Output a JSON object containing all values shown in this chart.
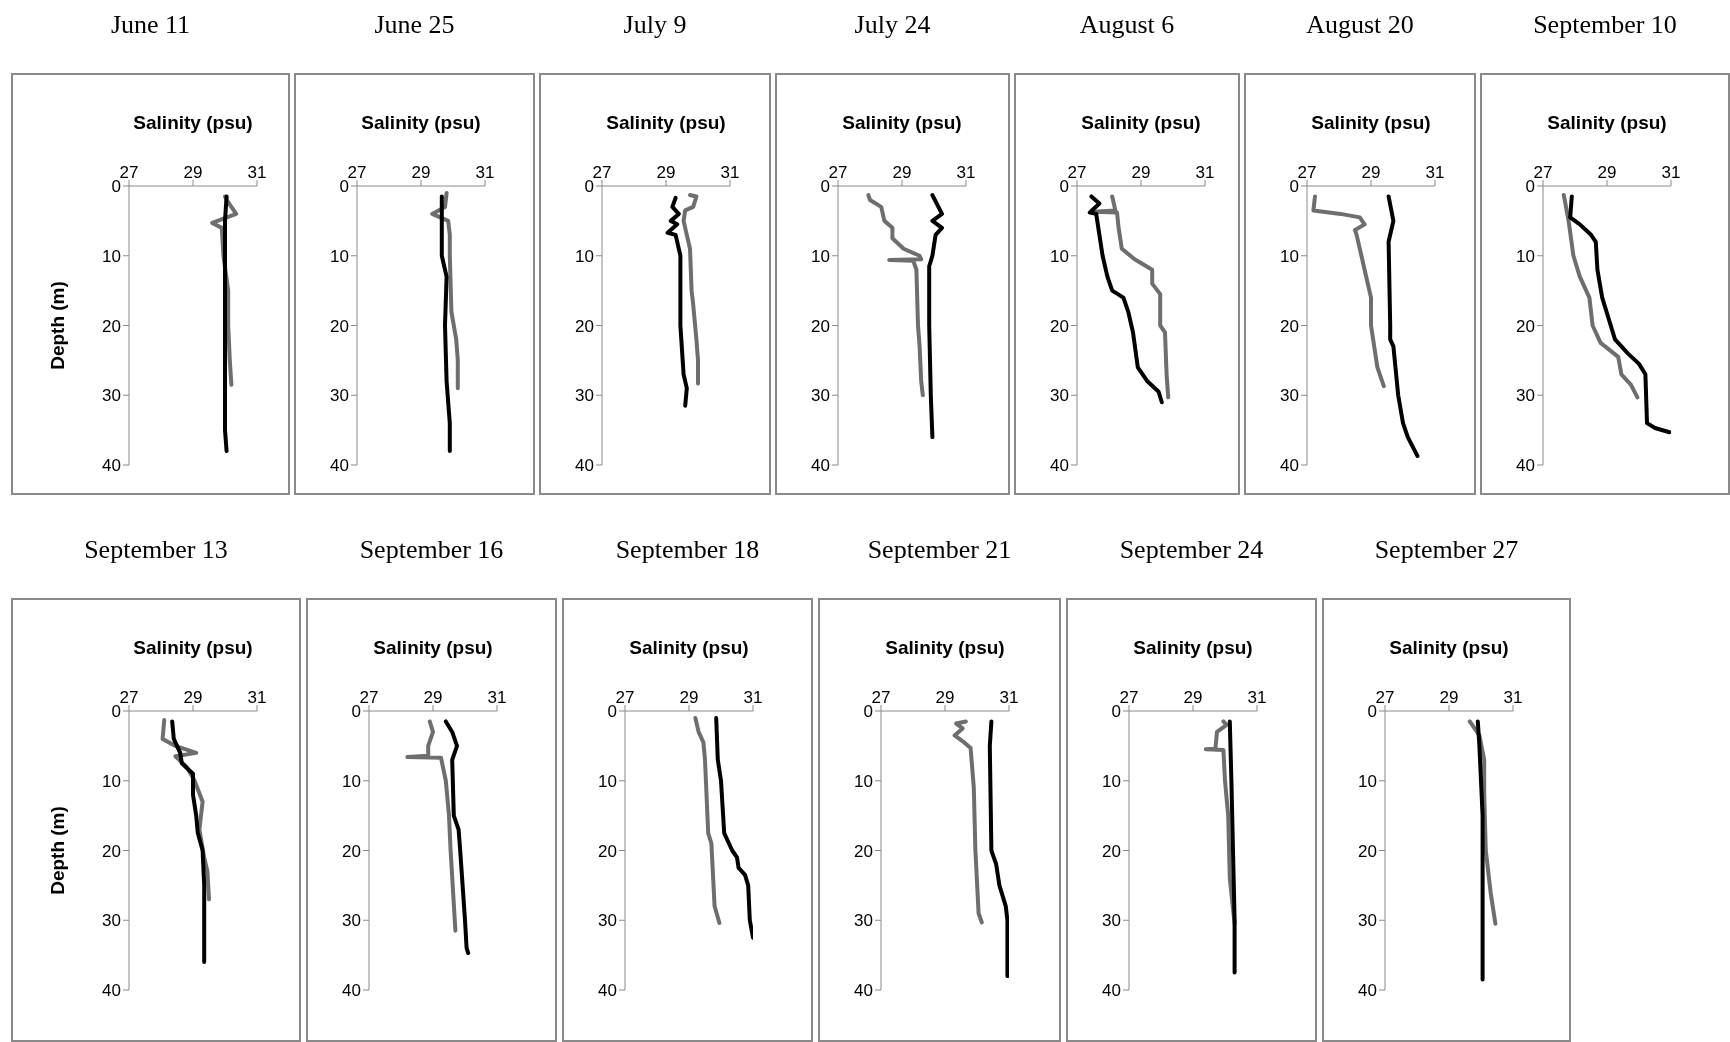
{
  "chart_data": [
    {
      "type": "line",
      "title": "June 11",
      "xlabel": "Salinity (psu)",
      "ylabel": "Depth (m)",
      "xlim": [
        27,
        31
      ],
      "xticks": [
        27,
        29,
        31
      ],
      "ylim": [
        40,
        0
      ],
      "yticks": [
        0,
        10,
        20,
        30,
        40
      ],
      "series": [
        {
          "color": "#6e6e6e",
          "x": [
            30.0,
            30.05,
            30.35,
            29.6,
            29.9,
            29.95,
            30.1,
            30.1,
            30.15,
            30.2
          ],
          "values": [
            1.5,
            2,
            4,
            5.3,
            6,
            10,
            15,
            20,
            25,
            28.5
          ]
        },
        {
          "color": "#000000",
          "x": [
            30.05,
            30.0,
            30.0,
            30.0,
            30.0,
            30.0,
            30.05
          ],
          "values": [
            1.5,
            5,
            10,
            20,
            30,
            35,
            38
          ]
        }
      ]
    },
    {
      "type": "line",
      "title": "June 25",
      "xlabel": "Salinity (psu)",
      "xlim": [
        27,
        31
      ],
      "xticks": [
        27,
        29,
        31
      ],
      "ylim": [
        40,
        0
      ],
      "yticks": [
        0,
        10,
        20,
        30,
        40
      ],
      "series": [
        {
          "color": "#6e6e6e",
          "x": [
            29.8,
            29.75,
            29.35,
            29.85,
            29.9,
            29.9,
            29.95,
            30.1,
            30.15,
            30.15
          ],
          "values": [
            1,
            3,
            4,
            5,
            7,
            10,
            18,
            22,
            25,
            29
          ]
        },
        {
          "color": "#000000",
          "x": [
            29.65,
            29.65,
            29.65,
            29.7,
            29.8,
            29.75,
            29.8,
            29.9,
            29.9
          ],
          "values": [
            1.5,
            5,
            10,
            11,
            13,
            20,
            28,
            34,
            38
          ]
        }
      ]
    },
    {
      "type": "line",
      "title": "July 9",
      "xlabel": "Salinity (psu)",
      "xlim": [
        27,
        31
      ],
      "xticks": [
        27,
        29,
        31
      ],
      "ylim": [
        40,
        0
      ],
      "yticks": [
        0,
        10,
        20,
        30,
        40
      ],
      "series": [
        {
          "color": "#6e6e6e",
          "x": [
            29.75,
            29.95,
            29.85,
            29.6,
            29.55,
            29.65,
            29.75,
            29.8,
            29.85,
            29.95,
            30.0,
            30.0
          ],
          "values": [
            1.3,
            1.5,
            3,
            3.5,
            5,
            7,
            9,
            15,
            17,
            22,
            25,
            28.3
          ]
        },
        {
          "color": "#000000",
          "x": [
            29.3,
            29.2,
            29.4,
            29.15,
            29.35,
            29.05,
            29.3,
            29.45,
            29.45,
            29.55,
            29.65,
            29.6
          ],
          "values": [
            1.7,
            3,
            4,
            5,
            5.5,
            6.7,
            7,
            10,
            20,
            27,
            29,
            31.5
          ]
        }
      ]
    },
    {
      "type": "line",
      "title": "July 24",
      "xlabel": "Salinity (psu)",
      "xlim": [
        27,
        31
      ],
      "xticks": [
        27,
        29,
        31
      ],
      "ylim": [
        40,
        0
      ],
      "yticks": [
        0,
        10,
        20,
        30,
        40
      ],
      "series": [
        {
          "color": "#6e6e6e",
          "x": [
            27.95,
            28.0,
            28.35,
            28.45,
            28.7,
            28.7,
            29.05,
            29.55,
            29.6,
            28.6,
            29.35,
            29.45,
            29.5,
            29.55,
            29.6,
            29.65
          ],
          "values": [
            1.3,
            2,
            3,
            5,
            6,
            7.5,
            9,
            10,
            10.5,
            10.6,
            10.7,
            12,
            20,
            23,
            28,
            30
          ]
        },
        {
          "color": "#000000",
          "x": [
            29.95,
            30.25,
            29.95,
            30.25,
            30.05,
            29.95,
            29.85,
            29.85,
            29.9,
            29.95
          ],
          "values": [
            1.3,
            4,
            5,
            6,
            7,
            10,
            11.5,
            20,
            30,
            36
          ]
        }
      ]
    },
    {
      "type": "line",
      "title": "August 6",
      "xlabel": "Salinity (psu)",
      "xlim": [
        27,
        31
      ],
      "xticks": [
        27,
        29,
        31
      ],
      "ylim": [
        40,
        0
      ],
      "yticks": [
        0,
        10,
        20,
        30,
        40
      ],
      "series": [
        {
          "color": "#6e6e6e",
          "x": [
            28.1,
            28.2,
            27.5,
            28.25,
            28.3,
            28.4,
            28.8,
            29.35,
            29.35,
            29.6,
            29.6,
            29.75,
            29.8,
            29.85
          ],
          "values": [
            1.5,
            3.5,
            3.7,
            3.8,
            6,
            9,
            10.5,
            12,
            14,
            15.5,
            20,
            21,
            27,
            30.3
          ]
        },
        {
          "color": "#000000",
          "x": [
            27.45,
            27.7,
            27.4,
            27.6,
            27.7,
            27.8,
            27.95,
            28.1,
            28.45,
            28.6,
            28.75,
            28.9,
            29.2,
            29.55,
            29.65
          ],
          "values": [
            1.5,
            2.5,
            3.8,
            4,
            7,
            10,
            13,
            15,
            16,
            18,
            21,
            26,
            28,
            29.5,
            31
          ]
        }
      ]
    },
    {
      "type": "line",
      "title": "August 20",
      "xlabel": "Salinity (psu)",
      "xlim": [
        27,
        31
      ],
      "xticks": [
        27,
        29,
        31
      ],
      "ylim": [
        40,
        0
      ],
      "yticks": [
        0,
        10,
        20,
        30,
        40
      ],
      "series": [
        {
          "color": "#6e6e6e",
          "x": [
            27.25,
            27.2,
            28.05,
            28.65,
            28.8,
            28.5,
            28.55,
            28.8,
            29.0,
            29.0,
            29.2,
            29.4
          ],
          "values": [
            1.5,
            3.5,
            4,
            4.5,
            5.5,
            6.3,
            7,
            12,
            16,
            20,
            26,
            28.7
          ]
        },
        {
          "color": "#000000",
          "x": [
            29.55,
            29.7,
            29.55,
            29.6,
            29.6,
            29.7,
            29.85,
            30.0,
            30.15,
            30.45
          ],
          "values": [
            1.5,
            5,
            8,
            20,
            22,
            23,
            30,
            34,
            36,
            38.7
          ]
        }
      ]
    },
    {
      "type": "line",
      "title": "September 10",
      "xlabel": "Salinity (psu)",
      "xlim": [
        27,
        31
      ],
      "xticks": [
        27,
        29,
        31
      ],
      "ylim": [
        40,
        0
      ],
      "yticks": [
        0,
        10,
        20,
        30,
        40
      ],
      "series": [
        {
          "color": "#6e6e6e",
          "x": [
            27.65,
            27.8,
            27.95,
            28.15,
            28.45,
            28.55,
            28.8,
            29.35,
            29.45,
            29.75,
            29.95
          ],
          "values": [
            1.3,
            5,
            10,
            13,
            16,
            20,
            22.5,
            24.5,
            27,
            28.5,
            30.3
          ]
        },
        {
          "color": "#000000",
          "x": [
            27.9,
            27.85,
            28.15,
            28.5,
            28.65,
            28.7,
            28.85,
            29.05,
            29.25,
            29.65,
            30.0,
            30.2,
            30.25,
            30.5,
            30.95
          ],
          "values": [
            1.5,
            4.5,
            5.5,
            7,
            8,
            12,
            16,
            19,
            22,
            24,
            25.5,
            27,
            34,
            34.7,
            35.3
          ]
        }
      ]
    },
    {
      "type": "line",
      "title": "September 13",
      "xlabel": "Salinity (psu)",
      "ylabel": "Depth (m)",
      "xlim": [
        27,
        31
      ],
      "xticks": [
        27,
        29,
        31
      ],
      "ylim": [
        40,
        0
      ],
      "yticks": [
        0,
        10,
        20,
        30,
        40
      ],
      "series": [
        {
          "color": "#6e6e6e",
          "x": [
            28.1,
            28.05,
            28.45,
            29.1,
            28.45,
            28.8,
            29.05,
            29.3,
            29.2,
            29.35,
            29.45,
            29.5
          ],
          "values": [
            1.3,
            4,
            5,
            6,
            6.5,
            8,
            10,
            13,
            17,
            21,
            23,
            27
          ]
        },
        {
          "color": "#000000",
          "x": [
            28.35,
            28.4,
            28.6,
            28.65,
            29.0,
            29.0,
            29.1,
            29.15,
            29.3,
            29.35,
            29.35
          ],
          "values": [
            1.5,
            4,
            6,
            7.5,
            9,
            12,
            15,
            17.5,
            20,
            25,
            36
          ]
        }
      ]
    },
    {
      "type": "line",
      "title": "September 16",
      "xlabel": "Salinity (psu)",
      "xlim": [
        27,
        31
      ],
      "xticks": [
        27,
        29,
        31
      ],
      "ylim": [
        40,
        0
      ],
      "yticks": [
        0,
        10,
        20,
        30,
        40
      ],
      "series": [
        {
          "color": "#6e6e6e",
          "x": [
            28.9,
            29.0,
            28.85,
            28.85,
            28.2,
            29.25,
            29.4,
            29.5,
            29.55,
            29.7
          ],
          "values": [
            1.5,
            3,
            5,
            6.4,
            6.6,
            6.7,
            10,
            15,
            20,
            31.5
          ]
        },
        {
          "color": "#000000",
          "x": [
            29.4,
            29.6,
            29.75,
            29.6,
            29.65,
            29.8,
            29.85,
            30.0,
            30.05,
            30.1
          ],
          "values": [
            1.5,
            3,
            5,
            7,
            15,
            17,
            20,
            30,
            34,
            34.7
          ]
        }
      ]
    },
    {
      "type": "line",
      "title": "September 18",
      "xlabel": "Salinity (psu)",
      "xlim": [
        27,
        31
      ],
      "xticks": [
        27,
        29,
        31
      ],
      "ylim": [
        40,
        0
      ],
      "yticks": [
        0,
        10,
        20,
        30,
        40
      ],
      "series": [
        {
          "color": "#6e6e6e",
          "x": [
            29.2,
            29.3,
            29.45,
            29.5,
            29.6,
            29.7,
            29.8,
            29.95
          ],
          "values": [
            1,
            3,
            4.5,
            7,
            17.5,
            19,
            28,
            30.4
          ]
        },
        {
          "color": "#000000",
          "x": [
            29.85,
            29.9,
            30.0,
            30.1,
            30.35,
            30.5,
            30.55,
            30.75,
            30.85,
            30.9,
            31.0
          ],
          "values": [
            1,
            7,
            10,
            17.5,
            20,
            21,
            22.5,
            23.5,
            25,
            30,
            32.5
          ]
        }
      ]
    },
    {
      "type": "line",
      "title": "September 21",
      "xlabel": "Salinity (psu)",
      "xlim": [
        27,
        31
      ],
      "xticks": [
        27,
        29,
        31
      ],
      "ylim": [
        40,
        0
      ],
      "yticks": [
        0,
        10,
        20,
        30,
        40
      ],
      "series": [
        {
          "color": "#6e6e6e",
          "x": [
            29.65,
            29.35,
            29.55,
            29.3,
            29.6,
            29.8,
            29.9,
            29.95,
            30.05,
            30.15
          ],
          "values": [
            1.5,
            1.8,
            2.5,
            3.5,
            4.5,
            5.3,
            11,
            20,
            29,
            30.3
          ]
        },
        {
          "color": "#000000",
          "x": [
            30.45,
            30.4,
            30.45,
            30.6,
            30.7,
            30.9,
            30.95,
            30.95
          ],
          "values": [
            1.5,
            5,
            20,
            22,
            25,
            28,
            30,
            38
          ]
        }
      ]
    },
    {
      "type": "line",
      "title": "September 24",
      "xlabel": "Salinity (psu)",
      "xlim": [
        27,
        31
      ],
      "xticks": [
        27,
        29,
        31
      ],
      "ylim": [
        40,
        0
      ],
      "yticks": [
        0,
        10,
        20,
        30,
        40
      ],
      "series": [
        {
          "color": "#6e6e6e",
          "x": [
            29.95,
            30.05,
            29.75,
            29.7,
            29.4,
            29.95,
            30.0,
            30.1,
            30.15,
            30.3
          ],
          "values": [
            1.5,
            2,
            3,
            5.4,
            5.5,
            5.6,
            10,
            15,
            24,
            30.5
          ]
        },
        {
          "color": "#000000",
          "x": [
            30.15,
            30.2,
            30.25,
            30.3,
            30.3
          ],
          "values": [
            1.5,
            10,
            20,
            30,
            37.5
          ]
        }
      ]
    },
    {
      "type": "line",
      "title": "September 27",
      "xlabel": "Salinity (psu)",
      "xlim": [
        27,
        31
      ],
      "xticks": [
        27,
        29,
        31
      ],
      "ylim": [
        40,
        0
      ],
      "yticks": [
        0,
        10,
        20,
        30,
        40
      ],
      "series": [
        {
          "color": "#6e6e6e",
          "x": [
            29.65,
            29.8,
            29.95,
            30.1,
            30.1,
            30.15,
            30.3,
            30.45
          ],
          "values": [
            1.5,
            2.5,
            3.5,
            7,
            12,
            20,
            26,
            30.5
          ]
        },
        {
          "color": "#000000",
          "x": [
            29.9,
            29.95,
            30.05,
            30.05,
            30.05
          ],
          "values": [
            1.5,
            5,
            15,
            25,
            38.5
          ]
        }
      ]
    }
  ]
}
